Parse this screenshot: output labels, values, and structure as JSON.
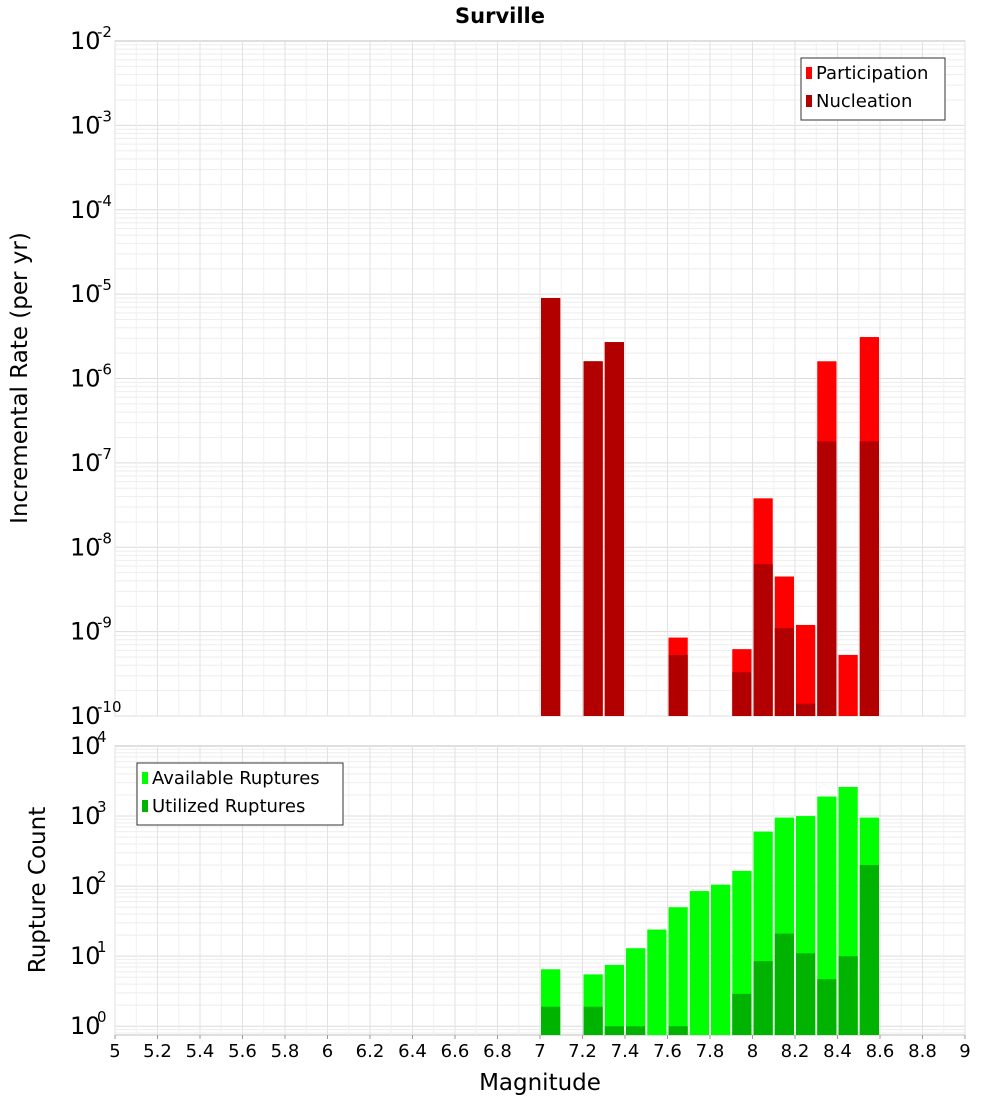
{
  "chart_data": [
    {
      "type": "bar",
      "title": "Surville",
      "xlabel": "",
      "ylabel": "Incremental Rate (per yr)",
      "yscale": "log",
      "ylim": [
        1e-10,
        0.01
      ],
      "xlim": [
        5,
        9
      ],
      "bar_width": 0.1,
      "grid": true,
      "legend_position": "top-right",
      "y_ticks": [
        {
          "base": "10",
          "exp": "-10"
        },
        {
          "base": "10",
          "exp": "-9"
        },
        {
          "base": "10",
          "exp": "-8"
        },
        {
          "base": "10",
          "exp": "-7"
        },
        {
          "base": "10",
          "exp": "-6"
        },
        {
          "base": "10",
          "exp": "-5"
        },
        {
          "base": "10",
          "exp": "-4"
        },
        {
          "base": "10",
          "exp": "-3"
        },
        {
          "base": "10",
          "exp": "-2"
        }
      ],
      "series": [
        {
          "name": "Participation",
          "color": "#ff0000",
          "x": [
            7.05,
            7.25,
            7.35,
            7.65,
            7.95,
            8.05,
            8.15,
            8.25,
            8.35,
            8.45,
            8.55
          ],
          "values": [
            9e-06,
            1.6e-06,
            2.7e-06,
            8.5e-10,
            6.2e-10,
            3.8e-08,
            4.5e-09,
            1.2e-09,
            1.6e-06,
            5.3e-10,
            3.1e-06
          ]
        },
        {
          "name": "Nucleation",
          "color": "#b20000",
          "x": [
            7.05,
            7.25,
            7.35,
            7.65,
            7.95,
            8.05,
            8.15,
            8.25,
            8.35,
            8.55
          ],
          "values": [
            9e-06,
            1.6e-06,
            2.7e-06,
            5.3e-10,
            3.3e-10,
            6.3e-09,
            1.1e-09,
            1.4e-10,
            1.8e-07,
            1.8e-07
          ]
        }
      ]
    },
    {
      "type": "bar",
      "title": "",
      "xlabel": "Magnitude",
      "ylabel": "Rupture Count",
      "yscale": "log",
      "ylim": [
        0.75,
        10000
      ],
      "xlim": [
        5,
        9
      ],
      "bar_width": 0.1,
      "grid": true,
      "legend_position": "top-left",
      "x_ticks": [
        "5",
        "5.2",
        "5.4",
        "5.6",
        "5.8",
        "6",
        "6.2",
        "6.4",
        "6.6",
        "6.8",
        "7",
        "7.2",
        "7.4",
        "7.6",
        "7.8",
        "8",
        "8.2",
        "8.4",
        "8.6",
        "8.8",
        "9"
      ],
      "y_ticks": [
        {
          "base": "10",
          "exp": "0"
        },
        {
          "base": "10",
          "exp": "1"
        },
        {
          "base": "10",
          "exp": "2"
        },
        {
          "base": "10",
          "exp": "3"
        },
        {
          "base": "10",
          "exp": "4"
        }
      ],
      "series": [
        {
          "name": "Available Ruptures",
          "color": "#00ff00",
          "x": [
            7.05,
            7.25,
            7.35,
            7.45,
            7.55,
            7.65,
            7.75,
            7.85,
            7.95,
            8.05,
            8.15,
            8.25,
            8.35,
            8.45,
            8.55
          ],
          "values": [
            6.5,
            5.5,
            7.5,
            13,
            24,
            50,
            85,
            105,
            165,
            600,
            950,
            1000,
            1900,
            2600,
            950
          ]
        },
        {
          "name": "Utilized Ruptures",
          "color": "#00b300",
          "x": [
            7.05,
            7.25,
            7.35,
            7.45,
            7.65,
            7.95,
            8.05,
            8.15,
            8.25,
            8.35,
            8.45,
            8.55
          ],
          "values": [
            1.9,
            1.9,
            1,
            1,
            1,
            2.9,
            8.5,
            21,
            11,
            4.7,
            10,
            200
          ]
        }
      ]
    }
  ]
}
